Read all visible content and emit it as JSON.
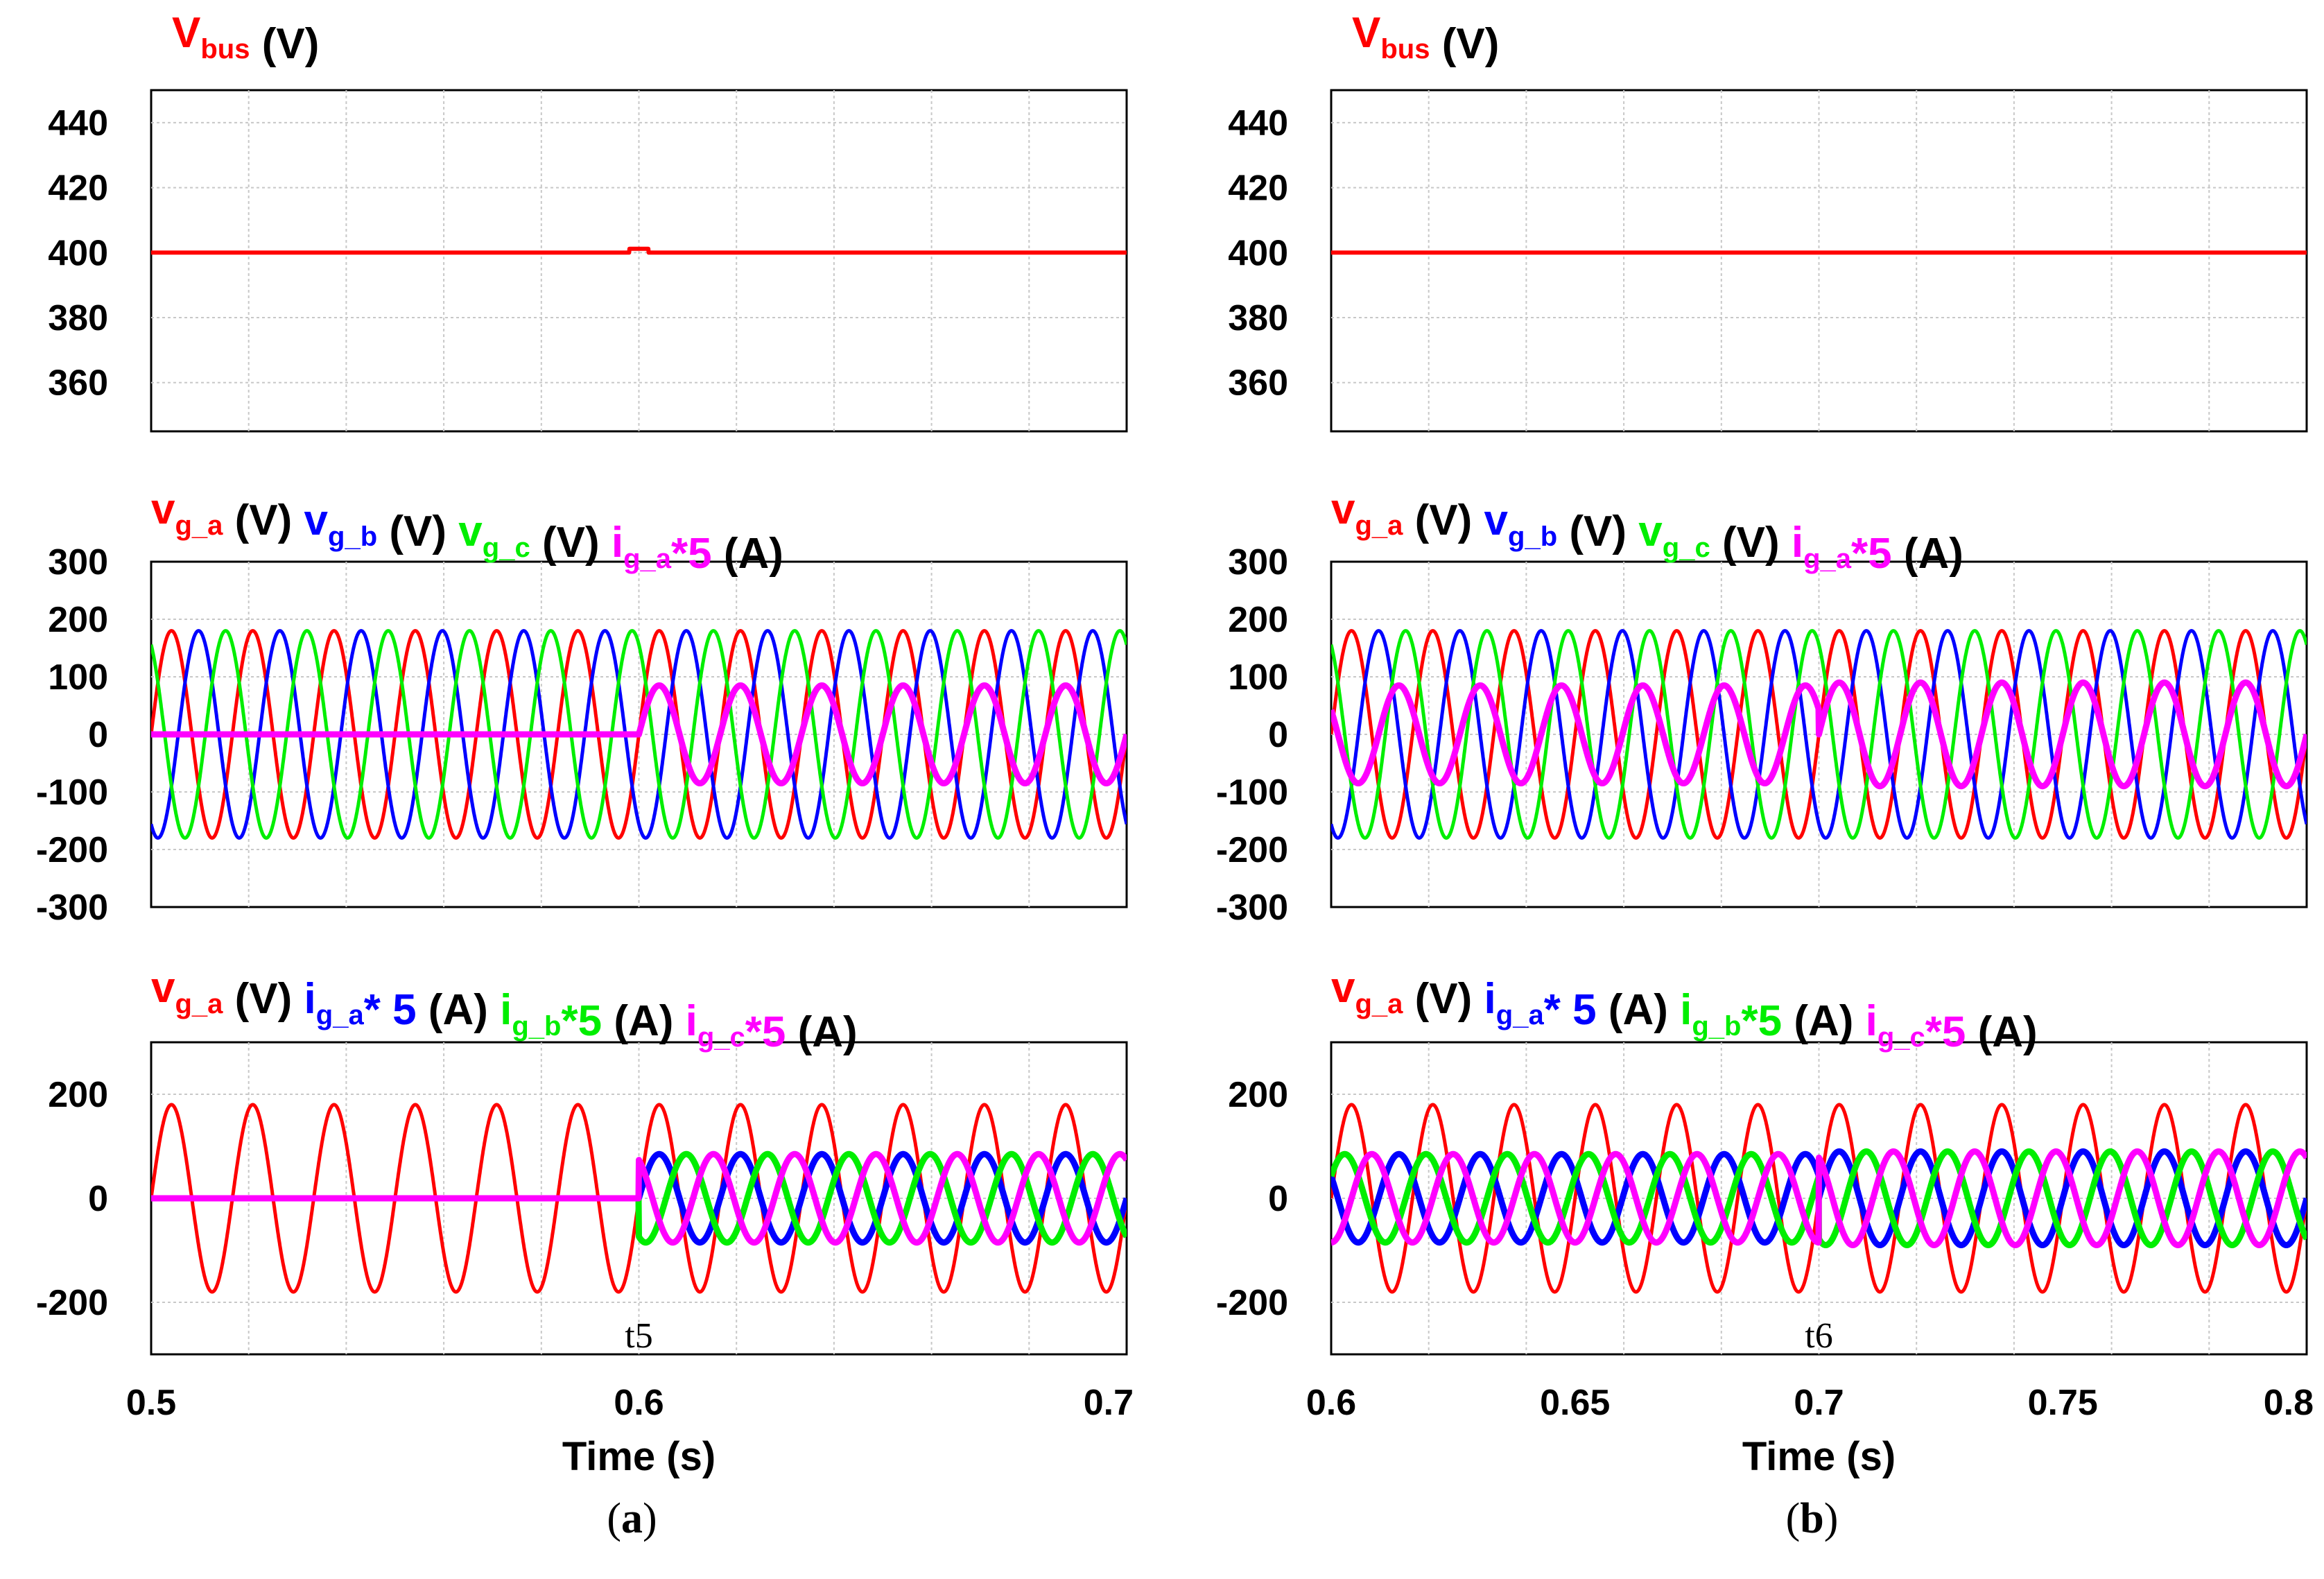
{
  "colors": {
    "red": "#ff0000",
    "blue": "#0000ff",
    "green": "#00ee00",
    "magenta": "#ff00ff",
    "black": "#000000",
    "grid": "#c8c8c8"
  },
  "chart_data": [
    {
      "panel": "a",
      "caption": {
        "open": "(",
        "letter": "a",
        "close": ")"
      },
      "type": "line",
      "xlabel": "Time (s)",
      "xlim": [
        0.5,
        0.7
      ],
      "xticks": [
        0.5,
        0.6,
        0.7
      ],
      "grid": true,
      "event": {
        "time": 0.6,
        "label": "t5"
      },
      "subplots": [
        {
          "labels": [
            {
              "main": "V",
              "sub": "bus",
              "color": "red"
            },
            {
              "main": "(V)",
              "color": "black"
            }
          ],
          "ylim": [
            345,
            450
          ],
          "yticks": [
            440,
            420,
            400,
            380,
            360
          ],
          "series": [
            {
              "name": "Vbus",
              "color": "red",
              "value": 400,
              "unit": "V",
              "blip_at": 0.6
            }
          ]
        },
        {
          "labels": [
            {
              "main": "v",
              "sub": "g_a",
              "color": "red"
            },
            {
              "main": "(V)",
              "color": "black"
            },
            {
              "main": "v",
              "sub": "g_b",
              "color": "blue"
            },
            {
              "main": "(V)",
              "color": "black"
            },
            {
              "main": "v",
              "sub": "g_c",
              "color": "green"
            },
            {
              "main": "(V)",
              "color": "black"
            },
            {
              "main": "i",
              "sub": "g_a",
              "post": "*5",
              "color": "magenta"
            },
            {
              "main": "(A)",
              "color": "black"
            }
          ],
          "ylim": [
            -300,
            300
          ],
          "yticks": [
            300,
            200,
            100,
            0,
            -100,
            -200,
            -300
          ],
          "series": [
            {
              "name": "v_g_a",
              "color": "red",
              "amplitude": 180,
              "frequency_hz": 60,
              "phase_deg": 0
            },
            {
              "name": "v_g_b",
              "color": "blue",
              "amplitude": 180,
              "frequency_hz": 60,
              "phase_deg": -120
            },
            {
              "name": "v_g_c",
              "color": "green",
              "amplitude": 180,
              "frequency_hz": 60,
              "phase_deg": 120
            },
            {
              "name": "i_g_a*5",
              "color": "magenta",
              "amplitude": 85,
              "frequency_hz": 60,
              "phase_deg": 0,
              "start_time": 0.6,
              "bold": true
            }
          ]
        },
        {
          "labels": [
            {
              "main": "v",
              "sub": "g_a",
              "color": "red"
            },
            {
              "main": "(V)",
              "color": "black"
            },
            {
              "main": "i",
              "sub": "g_a",
              "post": "* 5",
              "color": "blue"
            },
            {
              "main": "(A)",
              "color": "black"
            },
            {
              "main": "i",
              "sub": "g_b",
              "post": "*5",
              "color": "green"
            },
            {
              "main": "(A)",
              "color": "black"
            },
            {
              "main": "i",
              "sub": "g_c",
              "post": "*5",
              "color": "magenta"
            },
            {
              "main": "(A)",
              "color": "black"
            }
          ],
          "ylim": [
            -300,
            300
          ],
          "yticks": [
            200,
            0,
            -200
          ],
          "series": [
            {
              "name": "v_g_a",
              "color": "red",
              "amplitude": 180,
              "frequency_hz": 60,
              "phase_deg": 0
            },
            {
              "name": "i_g_a*5",
              "color": "blue",
              "amplitude": 85,
              "frequency_hz": 60,
              "phase_deg": 0,
              "start_time": 0.6,
              "bold": true
            },
            {
              "name": "i_g_b*5",
              "color": "green",
              "amplitude": 85,
              "frequency_hz": 60,
              "phase_deg": -120,
              "start_time": 0.6,
              "bold": true
            },
            {
              "name": "i_g_c*5",
              "color": "magenta",
              "amplitude": 85,
              "frequency_hz": 60,
              "phase_deg": 120,
              "start_time": 0.6,
              "bold": true
            }
          ]
        }
      ]
    },
    {
      "panel": "b",
      "caption": {
        "open": "(",
        "letter": "b",
        "close": ")"
      },
      "type": "line",
      "xlabel": "Time (s)",
      "xlim": [
        0.6,
        0.8
      ],
      "xticks": [
        0.6,
        0.65,
        0.7,
        0.75,
        0.8
      ],
      "grid": true,
      "event": {
        "time": 0.7,
        "label": "t6"
      },
      "subplots": [
        {
          "labels": [
            {
              "main": "V",
              "sub": "bus",
              "color": "red"
            },
            {
              "main": "(V)",
              "color": "black"
            }
          ],
          "ylim": [
            345,
            450
          ],
          "yticks": [
            440,
            420,
            400,
            380,
            360
          ],
          "series": [
            {
              "name": "Vbus",
              "color": "red",
              "value": 400,
              "unit": "V"
            }
          ]
        },
        {
          "labels": [
            {
              "main": "v",
              "sub": "g_a",
              "color": "red"
            },
            {
              "main": "(V)",
              "color": "black"
            },
            {
              "main": "v",
              "sub": "g_b",
              "color": "blue"
            },
            {
              "main": "(V)",
              "color": "black"
            },
            {
              "main": "v",
              "sub": "g_c",
              "color": "green"
            },
            {
              "main": "(V)",
              "color": "black"
            },
            {
              "main": "i",
              "sub": "g_a",
              "post": "*5",
              "color": "magenta"
            },
            {
              "main": "(A)",
              "color": "black"
            }
          ],
          "ylim": [
            -300,
            300
          ],
          "yticks": [
            300,
            200,
            100,
            0,
            -100,
            -200,
            -300
          ],
          "series": [
            {
              "name": "v_g_a",
              "color": "red",
              "amplitude": 180,
              "frequency_hz": 60,
              "phase_deg": 0
            },
            {
              "name": "v_g_b",
              "color": "blue",
              "amplitude": 180,
              "frequency_hz": 60,
              "phase_deg": -120
            },
            {
              "name": "v_g_c",
              "color": "green",
              "amplitude": 180,
              "frequency_hz": 60,
              "phase_deg": 120
            },
            {
              "name": "i_g_a*5",
              "color": "magenta",
              "amplitude_before": 85,
              "amplitude_after": 90,
              "frequency_hz": 60,
              "phase_before_deg": 150,
              "phase_after_deg": 0,
              "change_time": 0.7,
              "bold": true
            }
          ]
        },
        {
          "labels": [
            {
              "main": "v",
              "sub": "g_a",
              "color": "red"
            },
            {
              "main": "(V)",
              "color": "black"
            },
            {
              "main": "i",
              "sub": "g_a",
              "post": "* 5",
              "color": "blue"
            },
            {
              "main": "(A)",
              "color": "black"
            },
            {
              "main": "i",
              "sub": "g_b",
              "post": "*5",
              "color": "green"
            },
            {
              "main": "(A)",
              "color": "black"
            },
            {
              "main": "i",
              "sub": "g_c",
              "post": "*5",
              "color": "magenta"
            },
            {
              "main": "(A)",
              "color": "black"
            }
          ],
          "ylim": [
            -300,
            300
          ],
          "yticks": [
            200,
            0,
            -200
          ],
          "series": [
            {
              "name": "v_g_a",
              "color": "red",
              "amplitude": 180,
              "frequency_hz": 60,
              "phase_deg": 0
            },
            {
              "name": "i_g_a*5",
              "color": "blue",
              "amplitude_before": 85,
              "amplitude_after": 90,
              "frequency_hz": 60,
              "phase_before_deg": 150,
              "phase_after_deg": 0,
              "change_time": 0.7,
              "bold": true
            },
            {
              "name": "i_g_b*5",
              "color": "green",
              "amplitude_before": 85,
              "amplitude_after": 90,
              "frequency_hz": 60,
              "phase_before_deg": 30,
              "phase_after_deg": -120,
              "change_time": 0.7,
              "bold": true
            },
            {
              "name": "i_g_c*5",
              "color": "magenta",
              "amplitude_before": 85,
              "amplitude_after": 90,
              "frequency_hz": 60,
              "phase_before_deg": -90,
              "phase_after_deg": 120,
              "change_time": 0.7,
              "bold": true
            }
          ]
        }
      ]
    }
  ]
}
